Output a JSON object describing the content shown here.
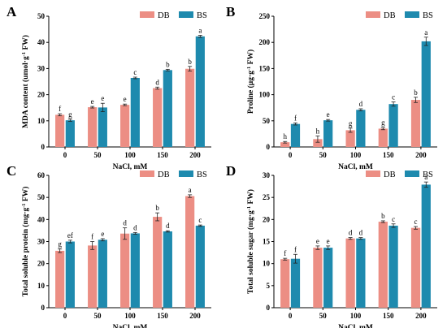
{
  "colors": {
    "DB": "#EC8E84",
    "BS": "#1E8AAE"
  },
  "chart_data": [
    {
      "panel": "A",
      "type": "bar",
      "categories": [
        "0",
        "50",
        "100",
        "150",
        "200"
      ],
      "xlabel": "NaCl, mM",
      "ylabel": "MDA content (umol·g⁻¹ FW)",
      "ylim": [
        0,
        50
      ],
      "yticks": [
        0,
        10,
        20,
        30,
        40,
        50
      ],
      "legend": [
        "DB",
        "BS"
      ],
      "legend_position": "top-right",
      "series": [
        {
          "name": "DB",
          "values": [
            12.3,
            15.2,
            16.1,
            22.5,
            29.9
          ],
          "errors": [
            0.4,
            0.3,
            0.3,
            0.4,
            0.9
          ],
          "letters": [
            "f",
            "e",
            "e",
            "d",
            "b"
          ]
        },
        {
          "name": "BS",
          "values": [
            10.2,
            15.1,
            26.4,
            29.4,
            42.3
          ],
          "errors": [
            0.4,
            1.6,
            0.3,
            0.3,
            0.4
          ],
          "letters": [
            "g",
            "e",
            "c",
            "b",
            "a"
          ]
        }
      ]
    },
    {
      "panel": "B",
      "type": "bar",
      "categories": [
        "0",
        "50",
        "100",
        "150",
        "200"
      ],
      "xlabel": "NaCl, mM",
      "ylabel": "Proline (µg·g⁻¹ FW)",
      "ylim": [
        0,
        250
      ],
      "yticks": [
        0,
        50,
        100,
        150,
        200,
        250
      ],
      "legend": [
        "DB",
        "BS"
      ],
      "legend_position": "top-right",
      "series": [
        {
          "name": "DB",
          "values": [
            9,
            15,
            32,
            35,
            90
          ],
          "errors": [
            1.5,
            6,
            4,
            2,
            5
          ],
          "letters": [
            "h",
            "h",
            "g",
            "g",
            "b"
          ]
        },
        {
          "name": "BS",
          "values": [
            44,
            51,
            71,
            82,
            202
          ],
          "errors": [
            2,
            1.5,
            2,
            4,
            8
          ],
          "letters": [
            "f",
            "e",
            "d",
            "c",
            "a"
          ]
        }
      ]
    },
    {
      "panel": "C",
      "type": "bar",
      "categories": [
        "0",
        "50",
        "100",
        "150",
        "200"
      ],
      "xlabel": "NaCl, mM",
      "ylabel": "Total soluble protein (mg·g⁻¹ FW)",
      "ylim": [
        0,
        60
      ],
      "yticks": [
        0,
        10,
        20,
        30,
        40,
        50,
        60
      ],
      "legend": [
        "DB",
        "BS"
      ],
      "legend_position": "top-right",
      "series": [
        {
          "name": "DB",
          "values": [
            25.8,
            28.2,
            33.6,
            41.2,
            50.6
          ],
          "errors": [
            0.8,
            1.8,
            2.6,
            1.8,
            0.6
          ],
          "letters": [
            "g",
            "f",
            "d",
            "b",
            "a"
          ]
        },
        {
          "name": "BS",
          "values": [
            30.0,
            30.8,
            33.7,
            34.6,
            37.2
          ],
          "errors": [
            0.6,
            0.5,
            0.4,
            0.3,
            0.3
          ],
          "letters": [
            "ef",
            "e",
            "d",
            "d",
            "c"
          ]
        }
      ]
    },
    {
      "panel": "D",
      "type": "bar",
      "categories": [
        "0",
        "50",
        "100",
        "150",
        "200"
      ],
      "xlabel": "NaCl, mM",
      "ylabel": "Total soluble sugar (mg·g⁻¹ FW)",
      "ylim": [
        0,
        30
      ],
      "yticks": [
        0,
        5,
        10,
        15,
        20,
        25,
        30
      ],
      "legend": [
        "DB",
        "BS"
      ],
      "legend_position": "top-right",
      "series": [
        {
          "name": "DB",
          "values": [
            11.0,
            13.6,
            15.7,
            19.5,
            18.1
          ],
          "errors": [
            0.2,
            0.4,
            0.2,
            0.2,
            0.3
          ],
          "letters": [
            "f",
            "e",
            "d",
            "b",
            "c"
          ]
        },
        {
          "name": "BS",
          "values": [
            11.1,
            13.6,
            15.7,
            18.6,
            27.9
          ],
          "errors": [
            1.0,
            0.4,
            0.2,
            0.4,
            0.6
          ],
          "letters": [
            "f",
            "e",
            "d",
            "c",
            "a"
          ]
        }
      ]
    }
  ]
}
